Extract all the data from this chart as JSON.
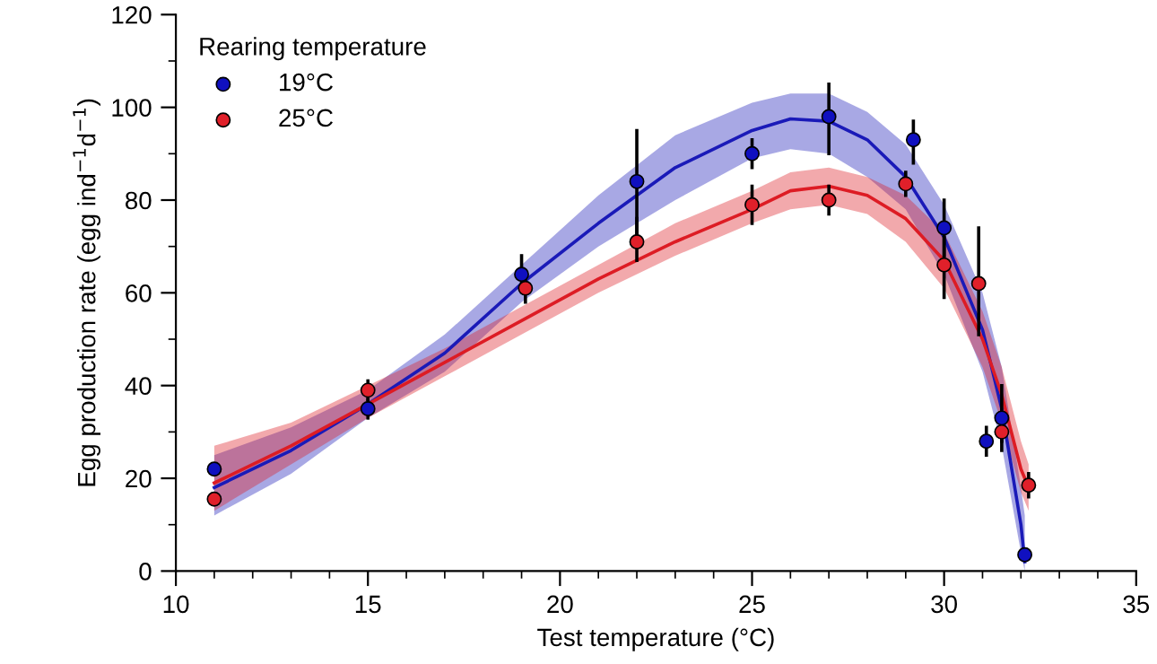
{
  "chart_data": {
    "type": "scatter",
    "xlabel": "Test temperature (°C)",
    "ylabel": "Egg production rate (egg ind$^{−1}$d$^{−1}$)",
    "legend_title": "Rearing temperature",
    "legend": "top left",
    "grid": false,
    "xlim": [
      10,
      35
    ],
    "xticks": [
      10,
      15,
      20,
      25,
      30,
      35
    ],
    "ylim": [
      0,
      120
    ],
    "yticks": [
      0,
      20,
      40,
      60,
      80,
      100,
      120
    ],
    "series": [
      {
        "type": "line",
        "color": "#1a1ab8",
        "x": [
          11,
          13,
          15,
          17,
          19,
          21,
          23,
          25,
          26,
          27,
          28,
          29,
          30,
          31,
          31.5,
          32,
          32.1
        ],
        "values": [
          18,
          26,
          36,
          47,
          62,
          75,
          87,
          95,
          97.5,
          97,
          93,
          85,
          72,
          52,
          35,
          10,
          2
        ],
        "lower": [
          12,
          21,
          33,
          43,
          58,
          70,
          80,
          89,
          91,
          90,
          85,
          78,
          64,
          43,
          27,
          4,
          0
        ],
        "upper": [
          25,
          31,
          39,
          51,
          66,
          81,
          94,
          101,
          103,
          103,
          99,
          92,
          79,
          60,
          44,
          18,
          12
        ]
      },
      {
        "type": "line",
        "color": "#dd1c24",
        "x": [
          11,
          13,
          15,
          17,
          19,
          21,
          23,
          25,
          26,
          27,
          28,
          29,
          30,
          31,
          31.5,
          32,
          32.2
        ],
        "values": [
          19,
          27,
          36,
          45,
          54,
          63,
          71,
          78,
          82,
          83,
          81,
          76,
          67,
          50,
          38,
          22,
          18
        ],
        "lower": [
          13,
          23,
          33,
          42,
          51,
          60,
          68,
          75,
          78,
          79,
          77,
          71,
          61,
          44,
          32,
          17,
          13
        ],
        "upper": [
          27,
          32,
          40,
          48,
          57,
          66,
          75,
          82,
          86,
          87,
          85,
          81,
          73,
          56,
          44,
          28,
          23
        ]
      },
      {
        "name": "19°C",
        "marker": "circle",
        "color": "#1010c0",
        "x": [
          11,
          15,
          19,
          22,
          25,
          27,
          29.2,
          30,
          31.1,
          31.5,
          32.1
        ],
        "values": [
          22,
          35,
          64,
          84,
          90,
          98,
          93,
          74,
          28,
          33,
          3.5
        ],
        "errors": [
          null,
          [
            33,
            37
          ],
          [
            61,
            68
          ],
          [
            72,
            95
          ],
          [
            87,
            93
          ],
          [
            90,
            105
          ],
          [
            88,
            97
          ],
          [
            68,
            80
          ],
          [
            25,
            31
          ],
          [
            28,
            40
          ],
          null
        ]
      },
      {
        "name": "25°C",
        "marker": "circle",
        "color": "#e0202a",
        "x": [
          11,
          15,
          19.1,
          22,
          25,
          27,
          29,
          30,
          30.9,
          31.5,
          32.2
        ],
        "values": [
          15.5,
          39,
          61,
          71,
          79,
          80,
          83.5,
          66,
          62,
          30,
          18.5
        ],
        "errors": [
          null,
          [
            37,
            41
          ],
          [
            58,
            64
          ],
          [
            67,
            76
          ],
          [
            75,
            83
          ],
          [
            77,
            83
          ],
          [
            81,
            86
          ],
          [
            59,
            72
          ],
          [
            51,
            74
          ],
          [
            26,
            34
          ],
          [
            16,
            21
          ]
        ]
      }
    ]
  }
}
